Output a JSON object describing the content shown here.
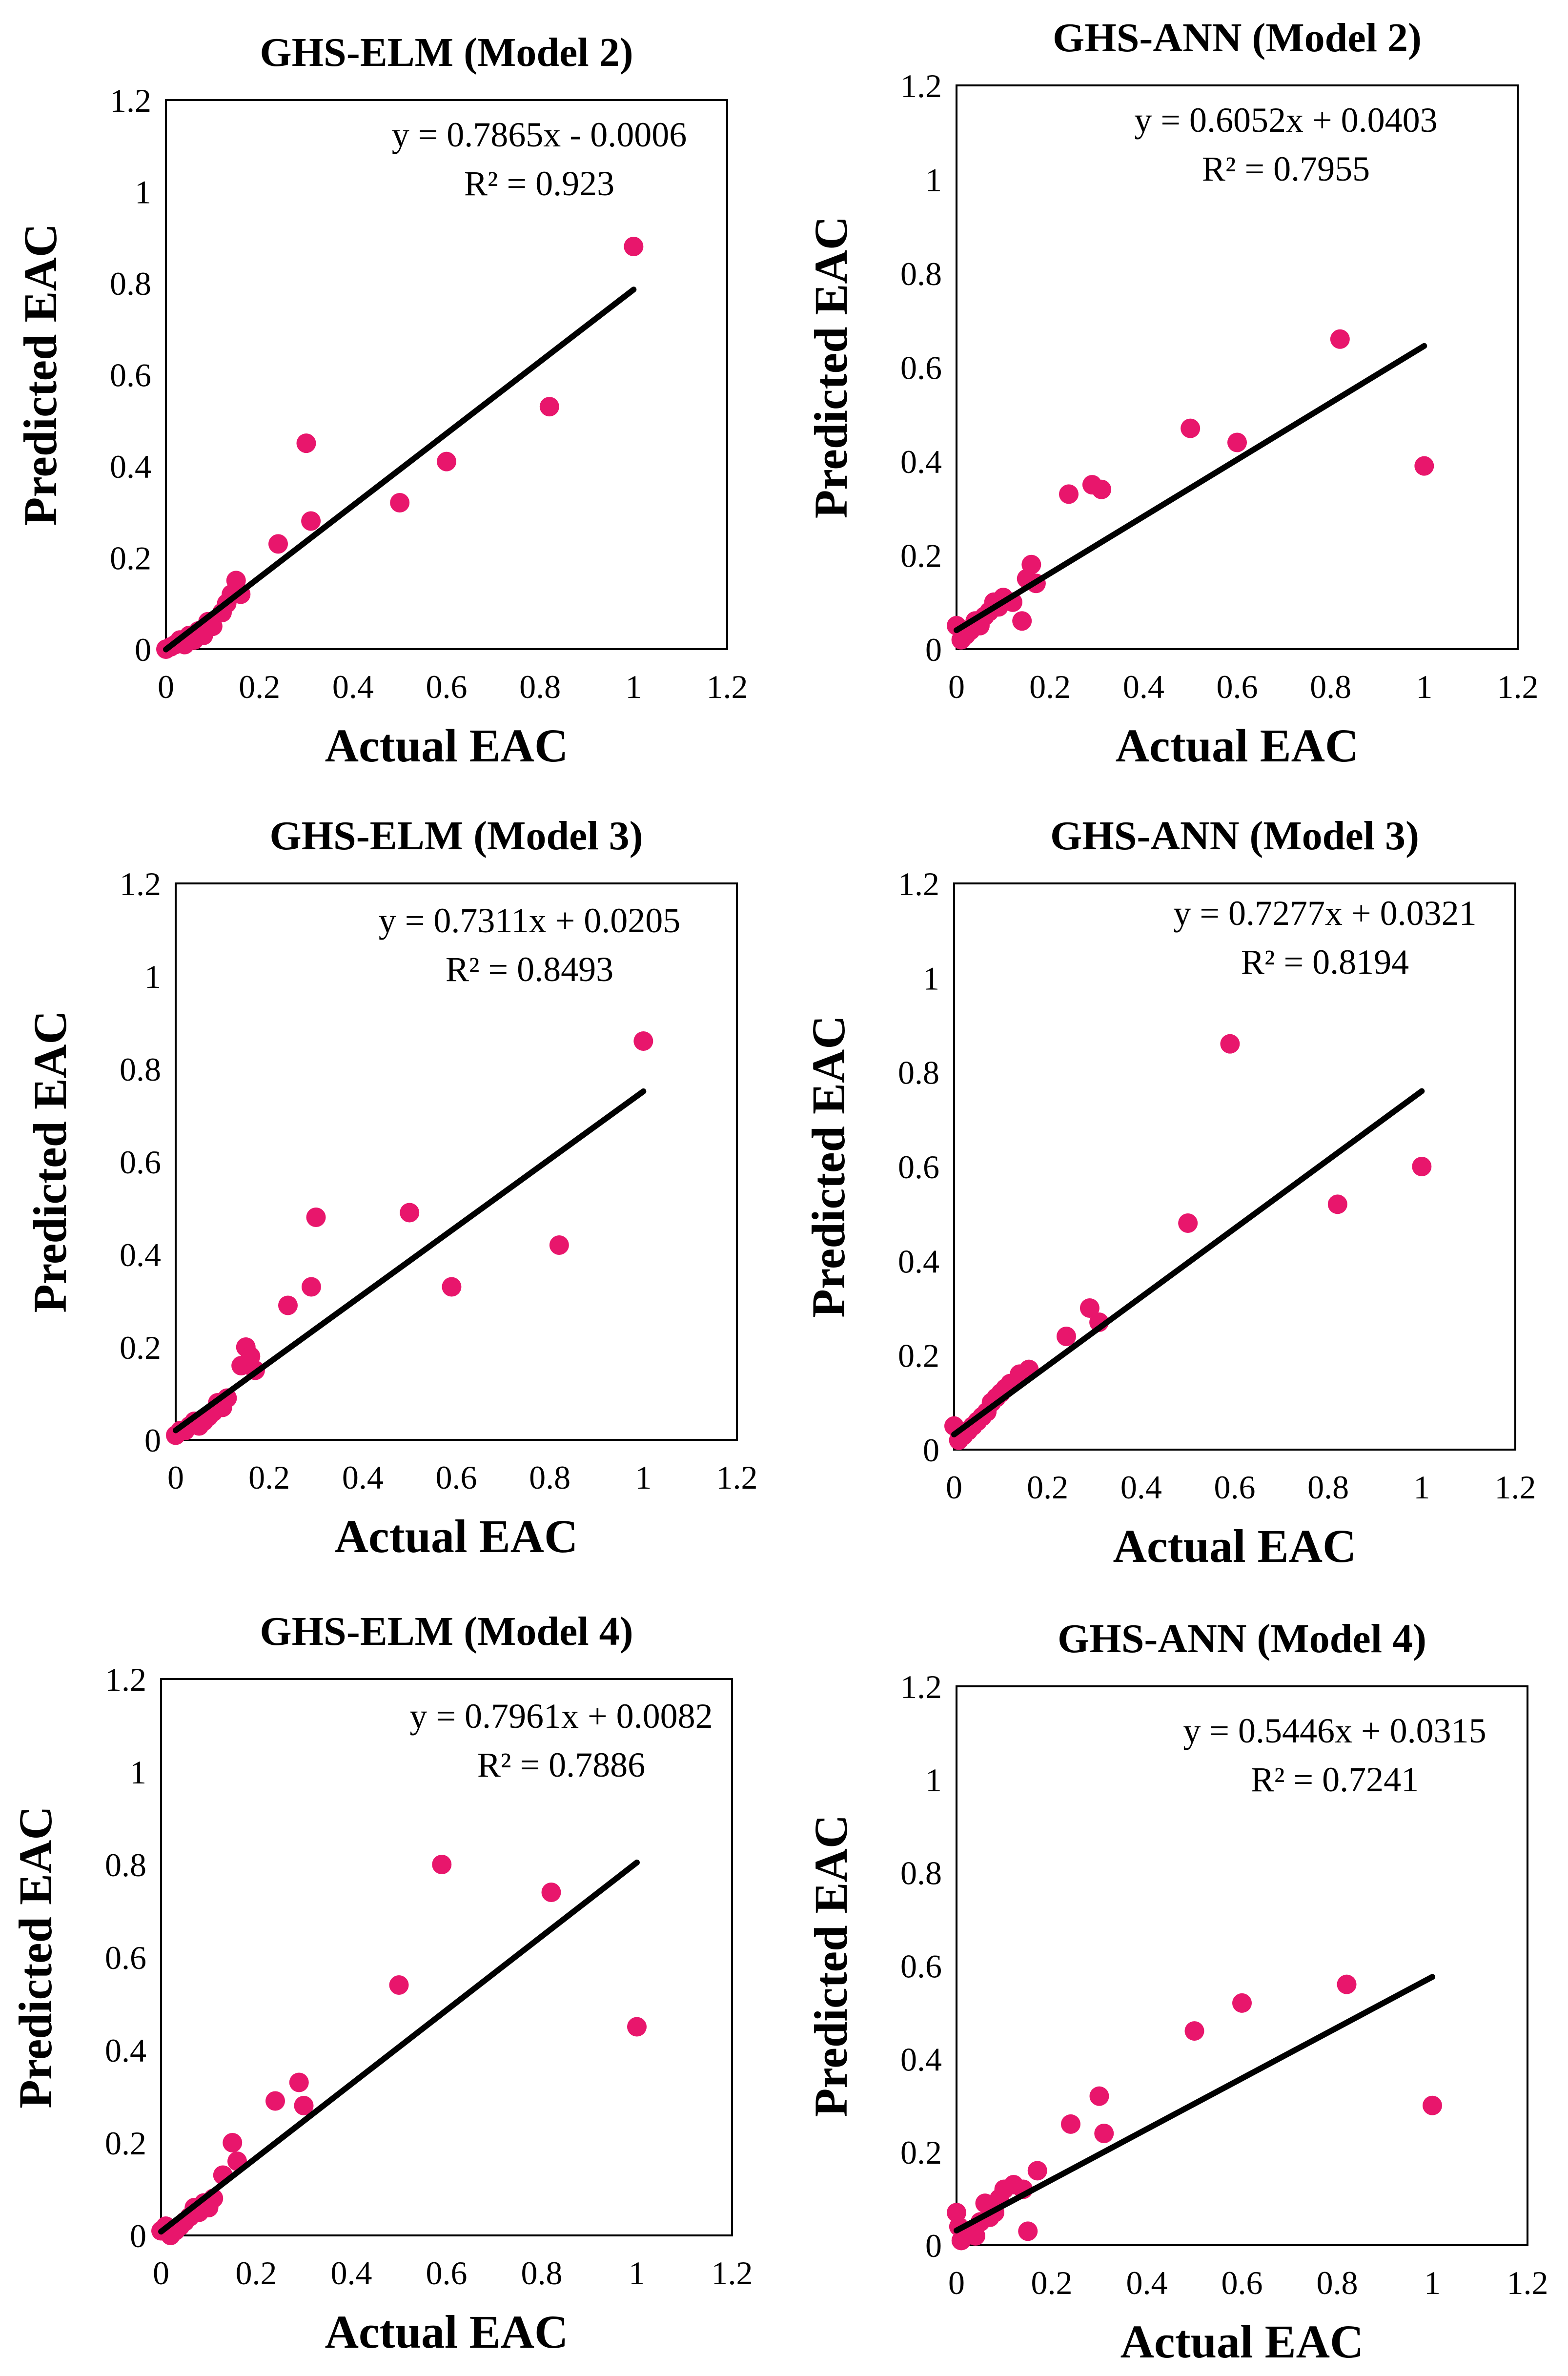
{
  "chart_data": [
    {
      "type": "scatter",
      "title": "GHS-ELM (Model 2)",
      "xlabel": "Actual EAC",
      "ylabel": "Predicted EAC",
      "xlim": [
        0,
        1.2
      ],
      "ylim": [
        0,
        1.2
      ],
      "xticks": [
        "0",
        "0.2",
        "0.4",
        "0.6",
        "0.8",
        "1",
        "1.2"
      ],
      "yticks": [
        "0",
        "0.2",
        "0.4",
        "0.6",
        "0.8",
        "1",
        "1.2"
      ],
      "marker_color": "#e8166c",
      "trendline": {
        "slope": 0.7865,
        "intercept": -0.0006,
        "equation": "y = 0.7865x - 0.0006",
        "r2": "R² = 0.923"
      },
      "points": [
        [
          0,
          0
        ],
        [
          0.01,
          0.005
        ],
        [
          0.02,
          0.01
        ],
        [
          0.03,
          0.02
        ],
        [
          0.04,
          0.01
        ],
        [
          0.05,
          0.03
        ],
        [
          0.06,
          0.02
        ],
        [
          0.07,
          0.04
        ],
        [
          0.08,
          0.03
        ],
        [
          0.09,
          0.06
        ],
        [
          0.1,
          0.05
        ],
        [
          0.12,
          0.08
        ],
        [
          0.13,
          0.1
        ],
        [
          0.14,
          0.12
        ],
        [
          0.15,
          0.15
        ],
        [
          0.16,
          0.12
        ],
        [
          0.24,
          0.23
        ],
        [
          0.3,
          0.45
        ],
        [
          0.31,
          0.28
        ],
        [
          0.5,
          0.32
        ],
        [
          0.6,
          0.41
        ],
        [
          0.82,
          0.53
        ],
        [
          1.0,
          0.88
        ]
      ]
    },
    {
      "type": "scatter",
      "title": "GHS-ANN (Model 2)",
      "xlabel": "Actual EAC",
      "ylabel": "Predicted EAC",
      "xlim": [
        0,
        1.2
      ],
      "ylim": [
        0,
        1.2
      ],
      "xticks": [
        "0",
        "0.2",
        "0.4",
        "0.6",
        "0.8",
        "1",
        "1.2"
      ],
      "yticks": [
        "0",
        "0.2",
        "0.4",
        "0.6",
        "0.8",
        "1",
        "1.2"
      ],
      "marker_color": "#e8166c",
      "trendline": {
        "slope": 0.6052,
        "intercept": 0.0403,
        "equation": "y = 0.6052x + 0.0403",
        "r2": "R² = 0.7955"
      },
      "points": [
        [
          0,
          0.05
        ],
        [
          0.01,
          0.02
        ],
        [
          0.02,
          0.03
        ],
        [
          0.03,
          0.04
        ],
        [
          0.04,
          0.06
        ],
        [
          0.05,
          0.05
        ],
        [
          0.06,
          0.07
        ],
        [
          0.07,
          0.08
        ],
        [
          0.08,
          0.1
        ],
        [
          0.09,
          0.09
        ],
        [
          0.1,
          0.11
        ],
        [
          0.12,
          0.1
        ],
        [
          0.14,
          0.06
        ],
        [
          0.15,
          0.15
        ],
        [
          0.16,
          0.18
        ],
        [
          0.17,
          0.14
        ],
        [
          0.24,
          0.33
        ],
        [
          0.29,
          0.35
        ],
        [
          0.31,
          0.34
        ],
        [
          0.5,
          0.47
        ],
        [
          0.6,
          0.44
        ],
        [
          0.82,
          0.66
        ],
        [
          1.0,
          0.39
        ]
      ]
    },
    {
      "type": "scatter",
      "title": "GHS-ELM (Model 3)",
      "xlabel": "Actual EAC",
      "ylabel": "Predicted EAC",
      "xlim": [
        0,
        1.2
      ],
      "ylim": [
        0,
        1.2
      ],
      "xticks": [
        "0",
        "0.2",
        "0.4",
        "0.6",
        "0.8",
        "1",
        "1.2"
      ],
      "yticks": [
        "0",
        "0.2",
        "0.4",
        "0.6",
        "0.8",
        "1",
        "1.2"
      ],
      "marker_color": "#e8166c",
      "trendline": {
        "slope": 0.7311,
        "intercept": 0.0205,
        "equation": "y = 0.7311x + 0.0205",
        "r2": "R² = 0.8493"
      },
      "points": [
        [
          0,
          0.01
        ],
        [
          0.01,
          0.02
        ],
        [
          0.02,
          0.02
        ],
        [
          0.03,
          0.03
        ],
        [
          0.04,
          0.04
        ],
        [
          0.05,
          0.03
        ],
        [
          0.06,
          0.04
        ],
        [
          0.07,
          0.05
        ],
        [
          0.08,
          0.06
        ],
        [
          0.09,
          0.08
        ],
        [
          0.1,
          0.07
        ],
        [
          0.11,
          0.09
        ],
        [
          0.14,
          0.16
        ],
        [
          0.15,
          0.2
        ],
        [
          0.16,
          0.18
        ],
        [
          0.17,
          0.15
        ],
        [
          0.24,
          0.29
        ],
        [
          0.29,
          0.33
        ],
        [
          0.3,
          0.48
        ],
        [
          0.5,
          0.49
        ],
        [
          0.59,
          0.33
        ],
        [
          0.82,
          0.42
        ],
        [
          1.0,
          0.86
        ]
      ]
    },
    {
      "type": "scatter",
      "title": "GHS-ANN (Model 3)",
      "xlabel": "Actual EAC",
      "ylabel": "Predicted EAC",
      "xlim": [
        0,
        1.2
      ],
      "ylim": [
        0,
        1.2
      ],
      "xticks": [
        "0",
        "0.2",
        "0.4",
        "0.6",
        "0.8",
        "1",
        "1.2"
      ],
      "yticks": [
        "0",
        "0.2",
        "0.4",
        "0.6",
        "0.8",
        "1",
        "1.2"
      ],
      "marker_color": "#e8166c",
      "trendline": {
        "slope": 0.7277,
        "intercept": 0.0321,
        "equation": "y = 0.7277x + 0.0321",
        "r2": "R² = 0.8194"
      },
      "points": [
        [
          0,
          0.05
        ],
        [
          0.01,
          0.02
        ],
        [
          0.02,
          0.03
        ],
        [
          0.03,
          0.04
        ],
        [
          0.04,
          0.05
        ],
        [
          0.05,
          0.06
        ],
        [
          0.06,
          0.07
        ],
        [
          0.07,
          0.08
        ],
        [
          0.08,
          0.1
        ],
        [
          0.09,
          0.11
        ],
        [
          0.1,
          0.12
        ],
        [
          0.11,
          0.13
        ],
        [
          0.12,
          0.14
        ],
        [
          0.14,
          0.16
        ],
        [
          0.16,
          0.17
        ],
        [
          0.24,
          0.24
        ],
        [
          0.29,
          0.3
        ],
        [
          0.31,
          0.27
        ],
        [
          0.5,
          0.48
        ],
        [
          0.59,
          0.86
        ],
        [
          0.82,
          0.52
        ],
        [
          1.0,
          0.6
        ]
      ]
    },
    {
      "type": "scatter",
      "title": "GHS-ELM (Model 4)",
      "xlabel": "Actual EAC",
      "ylabel": "Predicted EAC",
      "xlim": [
        0,
        1.2
      ],
      "ylim": [
        0,
        1.2
      ],
      "xticks": [
        "0",
        "0.2",
        "0.4",
        "0.6",
        "0.8",
        "1",
        "1.2"
      ],
      "yticks": [
        "0",
        "0.2",
        "0.4",
        "0.6",
        "0.8",
        "1",
        "1.2"
      ],
      "marker_color": "#e8166c",
      "trendline": {
        "slope": 0.7961,
        "intercept": 0.0082,
        "equation": "y = 0.7961x + 0.0082",
        "r2": "R² = 0.7886"
      },
      "points": [
        [
          0,
          0.01
        ],
        [
          0.01,
          0.02
        ],
        [
          0.02,
          0.0
        ],
        [
          0.03,
          0.01
        ],
        [
          0.04,
          0.02
        ],
        [
          0.05,
          0.03
        ],
        [
          0.06,
          0.04
        ],
        [
          0.07,
          0.06
        ],
        [
          0.08,
          0.05
        ],
        [
          0.09,
          0.07
        ],
        [
          0.1,
          0.06
        ],
        [
          0.11,
          0.08
        ],
        [
          0.13,
          0.13
        ],
        [
          0.15,
          0.2
        ],
        [
          0.16,
          0.16
        ],
        [
          0.24,
          0.29
        ],
        [
          0.29,
          0.33
        ],
        [
          0.3,
          0.28
        ],
        [
          0.5,
          0.54
        ],
        [
          0.59,
          0.8
        ],
        [
          0.82,
          0.74
        ],
        [
          1.0,
          0.45
        ]
      ]
    },
    {
      "type": "scatter",
      "title": "GHS-ANN (Model 4)",
      "xlabel": "Actual EAC",
      "ylabel": "Predicted EAC",
      "xlim": [
        0,
        1.2
      ],
      "ylim": [
        0,
        1.2
      ],
      "xticks": [
        "0",
        "0.2",
        "0.4",
        "0.6",
        "0.8",
        "1",
        "1.2"
      ],
      "yticks": [
        "0",
        "0.2",
        "0.4",
        "0.6",
        "0.8",
        "1",
        "1.2"
      ],
      "marker_color": "#e8166c",
      "trendline": {
        "slope": 0.5446,
        "intercept": 0.0315,
        "equation": "y = 0.5446x + 0.0315",
        "r2": "R² = 0.7241"
      },
      "points": [
        [
          0,
          0.07
        ],
        [
          0.005,
          0.04
        ],
        [
          0.01,
          0.01
        ],
        [
          0.02,
          0.02
        ],
        [
          0.03,
          0.03
        ],
        [
          0.04,
          0.02
        ],
        [
          0.05,
          0.05
        ],
        [
          0.06,
          0.09
        ],
        [
          0.07,
          0.06
        ],
        [
          0.08,
          0.07
        ],
        [
          0.09,
          0.1
        ],
        [
          0.1,
          0.12
        ],
        [
          0.12,
          0.13
        ],
        [
          0.14,
          0.12
        ],
        [
          0.15,
          0.03
        ],
        [
          0.17,
          0.16
        ],
        [
          0.24,
          0.26
        ],
        [
          0.3,
          0.32
        ],
        [
          0.31,
          0.24
        ],
        [
          0.5,
          0.46
        ],
        [
          0.6,
          0.52
        ],
        [
          0.82,
          0.56
        ],
        [
          1.0,
          0.3
        ]
      ]
    }
  ]
}
